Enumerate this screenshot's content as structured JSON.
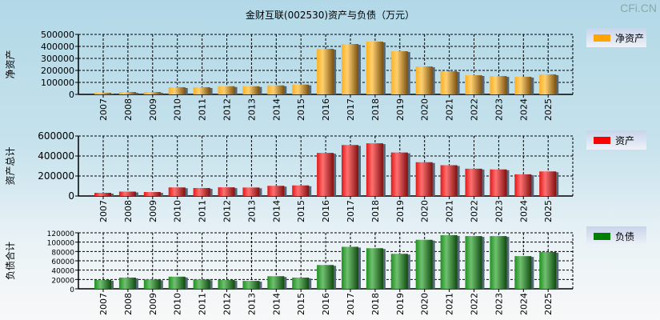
{
  "title": "金财互联(002530)资产与负债（万元）",
  "brand": "CFi.CN",
  "chart_data": [
    {
      "type": "bar",
      "ylabel": "净资产",
      "legend": "净资产",
      "color": "#ffa500",
      "ylim": [
        0,
        500000
      ],
      "yticks": [
        0,
        100000,
        200000,
        300000,
        400000,
        500000
      ],
      "categories": [
        "2007",
        "2008",
        "2009",
        "2010",
        "2011",
        "2012",
        "2013",
        "2014",
        "2015",
        "2016",
        "2017",
        "2018",
        "2019",
        "2020",
        "2021",
        "2022",
        "2023",
        "2024",
        "2025"
      ],
      "values": [
        13000,
        20000,
        20000,
        60000,
        60000,
        68000,
        68000,
        75000,
        82000,
        380000,
        420000,
        440000,
        360000,
        233000,
        193000,
        160000,
        153000,
        147000,
        167000
      ]
    },
    {
      "type": "bar",
      "ylabel": "资产总计",
      "legend": "资产",
      "color": "#ff0000",
      "ylim": [
        0,
        600000
      ],
      "yticks": [
        0,
        200000,
        400000,
        600000
      ],
      "categories": [
        "2007",
        "2008",
        "2009",
        "2010",
        "2011",
        "2012",
        "2013",
        "2014",
        "2015",
        "2016",
        "2017",
        "2018",
        "2019",
        "2020",
        "2021",
        "2022",
        "2023",
        "2024",
        "2025"
      ],
      "values": [
        32000,
        44000,
        40000,
        86000,
        80000,
        87000,
        85000,
        102000,
        106000,
        431000,
        510000,
        527000,
        435000,
        338000,
        308000,
        273000,
        266000,
        217000,
        246000
      ]
    },
    {
      "type": "bar",
      "ylabel": "负债合计",
      "legend": "负债",
      "color": "#008000",
      "ylim": [
        0,
        120000
      ],
      "yticks": [
        0,
        20000,
        40000,
        60000,
        80000,
        100000,
        120000
      ],
      "categories": [
        "2007",
        "2008",
        "2009",
        "2010",
        "2011",
        "2012",
        "2013",
        "2014",
        "2015",
        "2016",
        "2017",
        "2018",
        "2019",
        "2020",
        "2021",
        "2022",
        "2023",
        "2024",
        "2025"
      ],
      "values": [
        19000,
        24000,
        20000,
        26000,
        20000,
        19000,
        17000,
        27000,
        24000,
        51000,
        90000,
        87000,
        75000,
        105000,
        115000,
        113000,
        113000,
        70000,
        79000
      ]
    }
  ]
}
